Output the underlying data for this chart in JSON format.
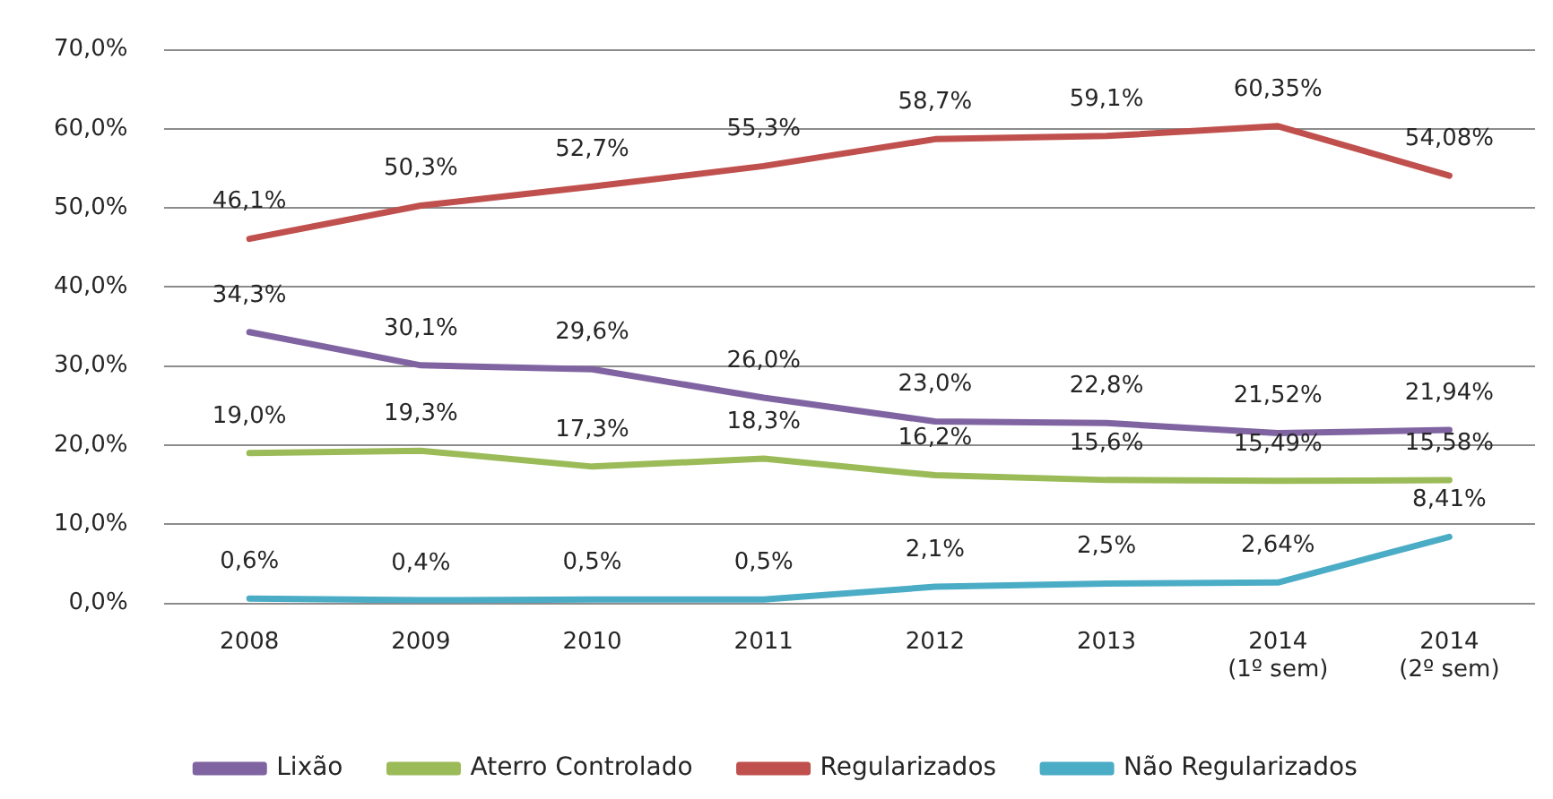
{
  "chart_data": {
    "type": "line",
    "categories": [
      "2008",
      "2009",
      "2010",
      "2011",
      "2012",
      "2013",
      "2014\n(1º sem)",
      "2014\n(2º sem)"
    ],
    "series": [
      {
        "name": "Lixão",
        "color": "#8064a2",
        "values": [
          34.3,
          30.1,
          29.6,
          26.0,
          23.0,
          22.8,
          21.52,
          21.94
        ],
        "value_labels": [
          "34,3%",
          "30,1%",
          "29,6%",
          "26,0%",
          "23,0%",
          "22,8%",
          "21,52%",
          "21,94%"
        ]
      },
      {
        "name": "Aterro Controlado",
        "color": "#9bbb59",
        "values": [
          19.0,
          19.3,
          17.3,
          18.3,
          16.2,
          15.6,
          15.49,
          15.58
        ],
        "value_labels": [
          "19,0%",
          "19,3%",
          "17,3%",
          "18,3%",
          "16,2%",
          "15,6%",
          "15,49%",
          "15,58%"
        ]
      },
      {
        "name": "Regularizados",
        "color": "#c0504d",
        "values": [
          46.1,
          50.3,
          52.7,
          55.3,
          58.7,
          59.1,
          60.35,
          54.08
        ],
        "value_labels": [
          "46,1%",
          "50,3%",
          "52,7%",
          "55,3%",
          "58,7%",
          "59,1%",
          "60,35%",
          "54,08%"
        ]
      },
      {
        "name": "Não Regularizados",
        "color": "#4bacc6",
        "values": [
          0.6,
          0.4,
          0.5,
          0.5,
          2.1,
          2.5,
          2.64,
          8.41
        ],
        "value_labels": [
          "0,6%",
          "0,4%",
          "0,5%",
          "0,5%",
          "2,1%",
          "2,5%",
          "2,64%",
          "8,41%"
        ]
      }
    ],
    "ylim": [
      0,
      70
    ],
    "yticks": [
      {
        "value": 0,
        "label": "0,0%"
      },
      {
        "value": 10,
        "label": "10,0%"
      },
      {
        "value": 20,
        "label": "20,0%"
      },
      {
        "value": 30,
        "label": "30,0%"
      },
      {
        "value": 40,
        "label": "40,0%"
      },
      {
        "value": 50,
        "label": "50,0%"
      },
      {
        "value": 60,
        "label": "60,0%"
      },
      {
        "value": 70,
        "label": "70,0%"
      }
    ],
    "grid": "y",
    "legend": "bottom"
  }
}
